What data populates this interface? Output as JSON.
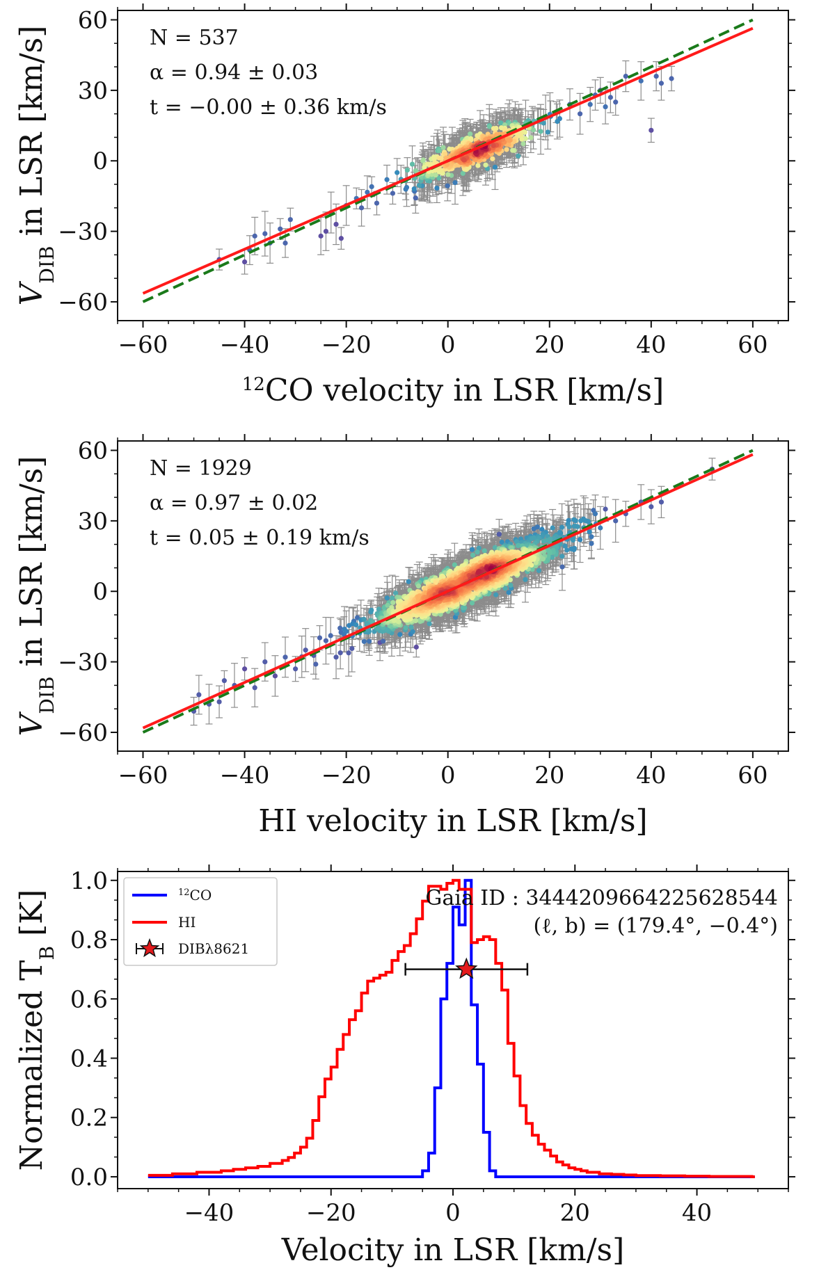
{
  "chart_data": [
    {
      "type": "scatter",
      "panel": "top",
      "xlabel_sup": "12",
      "xlabel": "CO velocity in LSR [km/s]",
      "ylabel_main": "V",
      "ylabel_sub": "DIB",
      "ylabel_rest": " in LSR [km/s]",
      "xlim": [
        -65,
        67
      ],
      "ylim": [
        -68,
        64
      ],
      "xticks": [
        -60,
        -40,
        -20,
        0,
        20,
        40,
        60
      ],
      "yticks": [
        -60,
        -30,
        0,
        30,
        60
      ],
      "annotations": [
        "N = 537",
        "α = 0.94 ± 0.03",
        "t = −0.00 ± 0.36 km/s"
      ],
      "fit_line": {
        "slope": 0.94,
        "intercept": -0.0,
        "color": "#ff1a1a"
      },
      "one_to_one_line": {
        "slope": 1.0,
        "intercept": 0.0,
        "color": "#1a7a1a"
      },
      "n_points": 537,
      "points_core": {
        "center": [
          5,
          4
        ],
        "x_spread": 6,
        "residual_spread": 3.2
      },
      "points_outliers": [
        [
          -45,
          -42
        ],
        [
          -40,
          -43
        ],
        [
          -39,
          -38
        ],
        [
          -38,
          -32
        ],
        [
          -36,
          -31
        ],
        [
          -35,
          -35
        ],
        [
          -33,
          -29
        ],
        [
          -32,
          -35
        ],
        [
          -31,
          -25
        ],
        [
          -25,
          -32
        ],
        [
          -24,
          -30
        ],
        [
          -23,
          -22
        ],
        [
          -22,
          -27
        ],
        [
          -21,
          -33
        ],
        [
          -20,
          -19
        ],
        [
          -18,
          -16
        ],
        [
          -17,
          -20
        ],
        [
          -15,
          -11
        ],
        [
          -14,
          -18
        ],
        [
          -12,
          -8
        ],
        [
          -10,
          -5
        ],
        [
          24,
          24
        ],
        [
          26,
          20
        ],
        [
          28,
          24
        ],
        [
          29,
          28
        ],
        [
          30,
          30
        ],
        [
          31,
          23
        ],
        [
          32,
          27
        ],
        [
          33,
          25
        ],
        [
          35,
          36
        ],
        [
          38,
          34
        ],
        [
          40,
          13
        ],
        [
          41,
          36
        ],
        [
          42,
          33
        ],
        [
          44,
          35
        ]
      ]
    },
    {
      "type": "scatter",
      "panel": "middle",
      "xlabel": "HI velocity in LSR [km/s]",
      "ylabel_main": "V",
      "ylabel_sub": "DIB",
      "ylabel_rest": " in LSR [km/s]",
      "xlim": [
        -65,
        67
      ],
      "ylim": [
        -68,
        64
      ],
      "xticks": [
        -60,
        -40,
        -20,
        0,
        20,
        40,
        60
      ],
      "yticks": [
        -60,
        -30,
        0,
        30,
        60
      ],
      "annotations": [
        "N = 1929",
        "α = 0.97 ± 0.02",
        "t = 0.05 ± 0.19 km/s"
      ],
      "fit_line": {
        "slope": 0.97,
        "intercept": 0.05,
        "color": "#ff1a1a"
      },
      "one_to_one_line": {
        "slope": 1.0,
        "intercept": 0.0,
        "color": "#1a7a1a"
      },
      "n_points": 1929,
      "points_core": {
        "center": [
          3,
          3
        ],
        "x_spread": 9,
        "residual_spread": 4.0
      },
      "points_outliers": [
        [
          -50,
          -51
        ],
        [
          -49,
          -44
        ],
        [
          -47,
          -48
        ],
        [
          -45,
          -47
        ],
        [
          -44,
          -38
        ],
        [
          -42,
          -40
        ],
        [
          -40,
          -33
        ],
        [
          -38,
          -41
        ],
        [
          -36,
          -30
        ],
        [
          -34,
          -36
        ],
        [
          -32,
          -28
        ],
        [
          -30,
          -33
        ],
        [
          -28,
          -25
        ],
        [
          -26,
          -31
        ],
        [
          -24,
          -21
        ],
        [
          -22,
          -28
        ],
        [
          -20,
          -17
        ],
        [
          24,
          25
        ],
        [
          26,
          22
        ],
        [
          28,
          28
        ],
        [
          29,
          33
        ],
        [
          30,
          27
        ],
        [
          31,
          35
        ],
        [
          33,
          30
        ],
        [
          35,
          33
        ],
        [
          38,
          38
        ],
        [
          40,
          36
        ],
        [
          42,
          38
        ],
        [
          52,
          52
        ]
      ]
    },
    {
      "type": "line",
      "panel": "bottom",
      "xlabel": "Velocity in LSR [km/s]",
      "ylabel": "Normalized T",
      "ylabel_sub": "B",
      "ylabel_rest": " [K]",
      "xlim": [
        -55,
        55
      ],
      "ylim": [
        -0.04,
        1.03
      ],
      "xticks": [
        -40,
        -20,
        0,
        20,
        40
      ],
      "yticks": [
        0.0,
        0.2,
        0.4,
        0.6,
        0.8,
        1.0
      ],
      "ytick_labels": [
        "0.0",
        "0.2",
        "0.4",
        "0.6",
        "0.8",
        "1.0"
      ],
      "gaia_label": "Gaia ID : 3444209664225628544",
      "coord_label": "(ℓ, b) = (179.4°, −0.4°)",
      "legend": [
        {
          "name": "CO",
          "sup": "12",
          "color": "#0000ff"
        },
        {
          "name": "HI",
          "color": "#ff0000"
        },
        {
          "name": "DIBλ8621",
          "marker": "star",
          "color": "#e31a1c"
        }
      ],
      "series": [
        {
          "name": "12CO",
          "color": "#0000ff",
          "step": true,
          "x": [
            -50,
            -48,
            -46,
            -44,
            -42,
            -40,
            -38,
            -36,
            -34,
            -32,
            -30,
            -28,
            -26,
            -24,
            -22,
            -20,
            -18,
            -16,
            -14,
            -12,
            -10,
            -8,
            -6,
            -5,
            -4,
            -3,
            -2,
            -1,
            0,
            1,
            2,
            3,
            4,
            5,
            6,
            7,
            8,
            10,
            20,
            30,
            40,
            49
          ],
          "values": [
            0,
            0,
            0,
            0,
            0,
            0,
            0,
            0,
            0,
            0,
            0,
            0,
            0,
            0,
            0,
            0,
            0,
            0,
            0,
            0,
            0,
            0,
            0,
            0.02,
            0.08,
            0.3,
            0.6,
            0.72,
            0.91,
            0.85,
            1.0,
            0.58,
            0.38,
            0.15,
            0.02,
            0.0,
            0.0,
            0,
            0,
            0,
            0,
            0
          ]
        },
        {
          "name": "HI",
          "color": "#ff0000",
          "step": true,
          "x": [
            -50,
            -46,
            -42,
            -38,
            -36,
            -34,
            -32,
            -30,
            -28,
            -27,
            -26,
            -25,
            -24,
            -23,
            -22,
            -21,
            -20,
            -19,
            -18,
            -17,
            -16,
            -15,
            -14,
            -13,
            -12,
            -11,
            -10,
            -9,
            -8,
            -7,
            -6,
            -5,
            -4,
            -3,
            -2,
            -1,
            0,
            1,
            2,
            3,
            4,
            5,
            6,
            7,
            8,
            9,
            10,
            11,
            12,
            13,
            14,
            15,
            16,
            17,
            18,
            19,
            20,
            21,
            22,
            24,
            26,
            28,
            30,
            34,
            38,
            42,
            46,
            49
          ],
          "values": [
            0.005,
            0.01,
            0.015,
            0.02,
            0.025,
            0.03,
            0.035,
            0.045,
            0.055,
            0.065,
            0.08,
            0.1,
            0.13,
            0.19,
            0.27,
            0.33,
            0.37,
            0.43,
            0.48,
            0.53,
            0.56,
            0.62,
            0.66,
            0.67,
            0.68,
            0.69,
            0.73,
            0.76,
            0.78,
            0.82,
            0.87,
            0.93,
            0.98,
            0.98,
            0.97,
            0.99,
            1.0,
            0.97,
            0.97,
            0.79,
            0.8,
            0.81,
            0.8,
            0.72,
            0.63,
            0.45,
            0.34,
            0.24,
            0.18,
            0.14,
            0.11,
            0.09,
            0.07,
            0.05,
            0.04,
            0.03,
            0.025,
            0.02,
            0.015,
            0.01,
            0.008,
            0.006,
            0.004,
            0.003,
            0.002,
            0.001,
            0.001,
            0.0
          ]
        }
      ],
      "dib_point": {
        "x": 2.2,
        "y": 0.7,
        "xerr": 10
      }
    }
  ]
}
